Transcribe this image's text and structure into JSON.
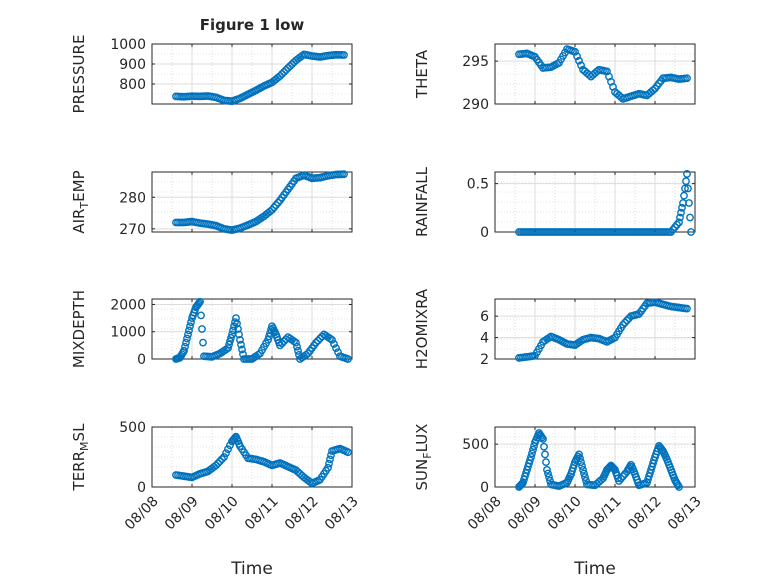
{
  "figure": {
    "title": "Figure 1 low",
    "xlabel": "Time",
    "x_ticks": [
      "08/08",
      "08/09",
      "08/10",
      "08/11",
      "08/12",
      "08/13"
    ],
    "marker_color": "#0072BD",
    "marker": "open-circle"
  },
  "chart_data": [
    {
      "type": "scatter",
      "ylabel": "PRESSURE",
      "ylim": [
        700,
        1000
      ],
      "yticks": [
        800,
        900,
        1000
      ],
      "grid": true,
      "points": [
        [
          0.6,
          738
        ],
        [
          0.8,
          736
        ],
        [
          1.0,
          739
        ],
        [
          1.2,
          738
        ],
        [
          1.4,
          740
        ],
        [
          1.6,
          733
        ],
        [
          1.8,
          718
        ],
        [
          2.0,
          714
        ],
        [
          2.2,
          728
        ],
        [
          2.4,
          748
        ],
        [
          2.6,
          768
        ],
        [
          2.8,
          790
        ],
        [
          3.0,
          808
        ],
        [
          3.2,
          840
        ],
        [
          3.4,
          880
        ],
        [
          3.6,
          918
        ],
        [
          3.8,
          948
        ],
        [
          4.0,
          940
        ],
        [
          4.2,
          935
        ],
        [
          4.4,
          942
        ],
        [
          4.6,
          946
        ],
        [
          4.8,
          945
        ]
      ]
    },
    {
      "type": "scatter",
      "ylabel": "THETA",
      "ylim": [
        290,
        297
      ],
      "yticks": [
        290,
        295
      ],
      "grid": true,
      "points": [
        [
          0.6,
          295.8
        ],
        [
          0.8,
          295.9
        ],
        [
          1.0,
          295.5
        ],
        [
          1.2,
          294.2
        ],
        [
          1.4,
          294.3
        ],
        [
          1.6,
          294.8
        ],
        [
          1.8,
          296.4
        ],
        [
          2.0,
          296.1
        ],
        [
          2.2,
          294.0
        ],
        [
          2.4,
          293.2
        ],
        [
          2.6,
          294.0
        ],
        [
          2.8,
          293.8
        ],
        [
          3.0,
          291.4
        ],
        [
          3.2,
          290.6
        ],
        [
          3.4,
          290.9
        ],
        [
          3.6,
          291.2
        ],
        [
          3.8,
          291.0
        ],
        [
          4.0,
          291.8
        ],
        [
          4.2,
          293.0
        ],
        [
          4.4,
          293.1
        ],
        [
          4.6,
          292.9
        ],
        [
          4.8,
          293.0
        ]
      ]
    },
    {
      "type": "scatter",
      "ylabel": "AIR_TEMP",
      "ylim": [
        269,
        288
      ],
      "yticks": [
        270,
        280
      ],
      "grid": true,
      "points": [
        [
          0.6,
          272
        ],
        [
          0.8,
          272
        ],
        [
          1.0,
          272.3
        ],
        [
          1.2,
          271.8
        ],
        [
          1.4,
          271.5
        ],
        [
          1.6,
          271
        ],
        [
          1.8,
          270
        ],
        [
          2.0,
          269.6
        ],
        [
          2.2,
          270.2
        ],
        [
          2.4,
          271.2
        ],
        [
          2.6,
          272.3
        ],
        [
          2.8,
          274
        ],
        [
          3.0,
          276
        ],
        [
          3.2,
          279
        ],
        [
          3.4,
          282.5
        ],
        [
          3.6,
          286
        ],
        [
          3.8,
          287
        ],
        [
          4.0,
          286
        ],
        [
          4.2,
          286.2
        ],
        [
          4.4,
          286.8
        ],
        [
          4.6,
          287.2
        ],
        [
          4.8,
          287.3
        ]
      ]
    },
    {
      "type": "scatter",
      "ylabel": "RAINFALL",
      "ylim": [
        0,
        0.62
      ],
      "yticks": [
        0,
        0.5
      ],
      "grid": true,
      "points": [
        [
          0.6,
          0
        ],
        [
          0.8,
          0
        ],
        [
          1.0,
          0
        ],
        [
          1.2,
          0
        ],
        [
          1.4,
          0
        ],
        [
          1.6,
          0
        ],
        [
          1.8,
          0
        ],
        [
          2.0,
          0
        ],
        [
          2.2,
          0
        ],
        [
          2.4,
          0
        ],
        [
          2.6,
          0
        ],
        [
          2.8,
          0
        ],
        [
          3.0,
          0
        ],
        [
          3.2,
          0
        ],
        [
          3.4,
          0
        ],
        [
          3.6,
          0
        ],
        [
          3.8,
          0
        ],
        [
          4.0,
          0
        ],
        [
          4.2,
          0
        ],
        [
          4.4,
          0
        ],
        [
          4.6,
          0.1
        ],
        [
          4.7,
          0.3
        ],
        [
          4.8,
          0.6
        ],
        [
          4.9,
          0
        ]
      ]
    },
    {
      "type": "scatter",
      "ylabel": "MIXDEPTH",
      "ylim": [
        0,
        2200
      ],
      "yticks": [
        0,
        1000,
        2000
      ],
      "grid": true,
      "points": [
        [
          0.6,
          0
        ],
        [
          0.7,
          50
        ],
        [
          0.8,
          300
        ],
        [
          0.9,
          900
        ],
        [
          1.0,
          1500
        ],
        [
          1.1,
          1900
        ],
        [
          1.2,
          2100
        ],
        [
          1.3,
          100
        ],
        [
          1.5,
          80
        ],
        [
          1.7,
          200
        ],
        [
          1.9,
          400
        ],
        [
          2.0,
          900
        ],
        [
          2.1,
          1500
        ],
        [
          2.2,
          700
        ],
        [
          2.3,
          0
        ],
        [
          2.5,
          0
        ],
        [
          2.7,
          200
        ],
        [
          2.9,
          700
        ],
        [
          3.0,
          1200
        ],
        [
          3.1,
          900
        ],
        [
          3.2,
          500
        ],
        [
          3.4,
          800
        ],
        [
          3.6,
          600
        ],
        [
          3.7,
          0
        ],
        [
          3.9,
          200
        ],
        [
          4.1,
          600
        ],
        [
          4.3,
          900
        ],
        [
          4.5,
          700
        ],
        [
          4.7,
          100
        ],
        [
          4.9,
          0
        ]
      ]
    },
    {
      "type": "scatter",
      "ylabel": "H2OMIXRA",
      "ylim": [
        2,
        7.6
      ],
      "yticks": [
        2,
        4,
        6
      ],
      "grid": true,
      "points": [
        [
          0.6,
          2.1
        ],
        [
          0.8,
          2.2
        ],
        [
          1.0,
          2.3
        ],
        [
          1.2,
          3.6
        ],
        [
          1.4,
          4.1
        ],
        [
          1.6,
          3.8
        ],
        [
          1.8,
          3.4
        ],
        [
          2.0,
          3.3
        ],
        [
          2.2,
          3.8
        ],
        [
          2.4,
          4.0
        ],
        [
          2.6,
          3.9
        ],
        [
          2.8,
          3.6
        ],
        [
          3.0,
          4.0
        ],
        [
          3.2,
          5.2
        ],
        [
          3.4,
          6.0
        ],
        [
          3.6,
          6.2
        ],
        [
          3.8,
          7.2
        ],
        [
          4.0,
          7.3
        ],
        [
          4.2,
          7.1
        ],
        [
          4.4,
          6.9
        ],
        [
          4.6,
          6.8
        ],
        [
          4.8,
          6.7
        ]
      ]
    },
    {
      "type": "scatter",
      "ylabel": "TERR_MSL",
      "ylim": [
        0,
        500
      ],
      "yticks": [
        0,
        500
      ],
      "grid": true,
      "points": [
        [
          0.6,
          100
        ],
        [
          0.8,
          90
        ],
        [
          1.0,
          80
        ],
        [
          1.2,
          110
        ],
        [
          1.4,
          130
        ],
        [
          1.6,
          180
        ],
        [
          1.8,
          250
        ],
        [
          2.0,
          380
        ],
        [
          2.1,
          420
        ],
        [
          2.2,
          340
        ],
        [
          2.4,
          240
        ],
        [
          2.6,
          230
        ],
        [
          2.8,
          210
        ],
        [
          3.0,
          180
        ],
        [
          3.2,
          200
        ],
        [
          3.4,
          170
        ],
        [
          3.6,
          140
        ],
        [
          3.8,
          80
        ],
        [
          4.0,
          30
        ],
        [
          4.2,
          60
        ],
        [
          4.4,
          160
        ],
        [
          4.5,
          300
        ],
        [
          4.7,
          320
        ],
        [
          4.9,
          290
        ]
      ]
    },
    {
      "type": "scatter",
      "ylabel": "SUN_FLUX",
      "ylim": [
        0,
        700
      ],
      "yticks": [
        0,
        500
      ],
      "grid": true,
      "points": [
        [
          0.6,
          0
        ],
        [
          0.7,
          50
        ],
        [
          0.8,
          200
        ],
        [
          0.9,
          350
        ],
        [
          1.0,
          520
        ],
        [
          1.1,
          630
        ],
        [
          1.2,
          560
        ],
        [
          1.3,
          200
        ],
        [
          1.4,
          30
        ],
        [
          1.6,
          10
        ],
        [
          1.8,
          50
        ],
        [
          1.9,
          150
        ],
        [
          2.0,
          290
        ],
        [
          2.1,
          380
        ],
        [
          2.2,
          200
        ],
        [
          2.3,
          30
        ],
        [
          2.5,
          20
        ],
        [
          2.7,
          100
        ],
        [
          2.8,
          200
        ],
        [
          2.9,
          250
        ],
        [
          3.0,
          200
        ],
        [
          3.1,
          70
        ],
        [
          3.3,
          180
        ],
        [
          3.4,
          260
        ],
        [
          3.5,
          150
        ],
        [
          3.6,
          20
        ],
        [
          3.8,
          50
        ],
        [
          3.9,
          200
        ],
        [
          4.0,
          350
        ],
        [
          4.1,
          480
        ],
        [
          4.2,
          420
        ],
        [
          4.3,
          320
        ],
        [
          4.4,
          200
        ],
        [
          4.5,
          80
        ],
        [
          4.6,
          0
        ]
      ]
    }
  ]
}
